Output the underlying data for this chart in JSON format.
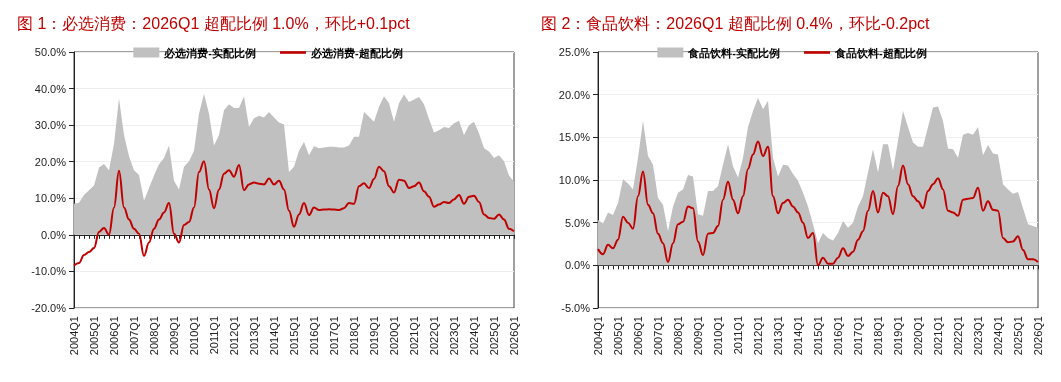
{
  "chart_data": [
    {
      "type": "line",
      "title": "图 1：必选消费：2026Q1 超配比例 1.0%，环比+0.1pct",
      "categories": [
        "2004Q1",
        null,
        null,
        null,
        "2005Q1",
        null,
        null,
        null,
        "2006Q1",
        null,
        null,
        null,
        "2007Q1",
        null,
        null,
        null,
        "2008Q1",
        null,
        null,
        null,
        "2009Q1",
        null,
        null,
        null,
        "2010Q1",
        null,
        null,
        null,
        "2011Q1",
        null,
        null,
        null,
        "2012Q1",
        null,
        null,
        null,
        "2013Q1",
        null,
        null,
        null,
        "2014Q1",
        null,
        null,
        null,
        "2015Q1",
        null,
        null,
        null,
        "2016Q1",
        null,
        null,
        null,
        "2017Q1",
        null,
        null,
        null,
        "2018Q1",
        null,
        null,
        null,
        "2019Q1",
        null,
        null,
        null,
        "2020Q1",
        null,
        null,
        null,
        "2021Q1",
        null,
        null,
        null,
        "2022Q1",
        null,
        null,
        null,
        "2023Q1",
        null,
        null,
        null,
        "2024Q1",
        null,
        null,
        null,
        "2025Q1",
        null,
        null,
        null,
        "2026Q1"
      ],
      "series": [
        {
          "name": "必选消费-实配比例",
          "type": "area",
          "color": "#c0c0c0",
          "values": [
            8.5,
            8.8,
            10.9,
            12.2,
            13.5,
            18.4,
            19.4,
            17.7,
            24.9,
            37.3,
            27.3,
            21.5,
            17.7,
            16.4,
            9.3,
            12.8,
            16.2,
            19.3,
            21,
            24.4,
            14.8,
            12.4,
            18.6,
            20.1,
            23,
            33.1,
            38.6,
            33.1,
            24.4,
            27.3,
            34.1,
            35.7,
            34.7,
            34.7,
            37.9,
            29.5,
            31.9,
            32.6,
            32.1,
            33.6,
            32.1,
            30.7,
            30.2,
            17.2,
            18.6,
            23,
            25.4,
            21.8,
            24.2,
            23.7,
            23.9,
            24.1,
            24.1,
            23.9,
            23.9,
            24.4,
            26.8,
            26.8,
            33.6,
            32.3,
            30.9,
            35,
            37.9,
            36,
            30.9,
            36,
            38.4,
            36.3,
            37,
            37.7,
            35.7,
            31.7,
            28,
            28.6,
            29.5,
            29.2,
            30.5,
            31.2,
            27.3,
            30,
            30.9,
            27.8,
            23.7,
            22.8,
            21,
            21.8,
            20.1,
            16.2,
            14.5
          ]
        },
        {
          "name": "必选消费-超配比例",
          "type": "line",
          "color": "#c00000",
          "values": [
            -8.4,
            -7.7,
            -5.5,
            -4.7,
            -3.6,
            0.8,
            1.9,
            0,
            7.5,
            17.5,
            7.5,
            4.2,
            1.7,
            0.3,
            -5.8,
            -2.1,
            1.7,
            4.2,
            6.1,
            8.7,
            0.3,
            -2.1,
            2.7,
            3.5,
            7.5,
            17.2,
            20.1,
            12.4,
            7.3,
            12.4,
            16.7,
            17.7,
            15.9,
            19.1,
            12.2,
            13.8,
            14.3,
            14,
            13.8,
            15.4,
            13.8,
            14.8,
            12.4,
            6.6,
            2.2,
            5.6,
            8.7,
            5.4,
            7.5,
            6.8,
            6.9,
            7,
            6.9,
            6.8,
            7.3,
            8.7,
            8.5,
            13.3,
            14.1,
            12.8,
            15.3,
            18.6,
            17.4,
            13.3,
            11.6,
            15.1,
            14.8,
            12.8,
            13.3,
            14.3,
            11.9,
            10.4,
            7.7,
            8.3,
            9,
            8.7,
            9.7,
            10.9,
            8.5,
            10.4,
            10.7,
            9,
            5.6,
            4.6,
            4.4,
            5.6,
            4.2,
            1.7,
            1.0
          ]
        }
      ],
      "ylim": [
        -20,
        50
      ],
      "yticks": [
        {
          "value": -20,
          "label": "-20.0%"
        },
        {
          "value": -10,
          "label": "-10.0%"
        },
        {
          "value": 0,
          "label": "0.0%"
        },
        {
          "value": 10,
          "label": "10.0%"
        },
        {
          "value": 20,
          "label": "20.0%"
        },
        {
          "value": 30,
          "label": "30.0%"
        },
        {
          "value": 40,
          "label": "40.0%"
        },
        {
          "value": 50,
          "label": "50.0%"
        }
      ],
      "grid": "y",
      "legend": "top",
      "marker": "none"
    },
    {
      "type": "line",
      "title": "图 2：食品饮料：2026Q1 超配比例 0.4%，环比-0.2pct",
      "categories": [
        "2004Q1",
        null,
        null,
        null,
        "2005Q1",
        null,
        null,
        null,
        "2006Q1",
        null,
        null,
        null,
        "2007Q1",
        null,
        null,
        null,
        "2008Q1",
        null,
        null,
        null,
        "2009Q1",
        null,
        null,
        null,
        "2010Q1",
        null,
        null,
        null,
        "2011Q1",
        null,
        null,
        null,
        "2012Q1",
        null,
        null,
        null,
        "2013Q1",
        null,
        null,
        null,
        "2014Q1",
        null,
        null,
        null,
        "2015Q1",
        null,
        null,
        null,
        "2016Q1",
        null,
        null,
        null,
        "2017Q1",
        null,
        null,
        null,
        "2018Q1",
        null,
        null,
        null,
        "2019Q1",
        null,
        null,
        null,
        "2020Q1",
        null,
        null,
        null,
        "2021Q1",
        null,
        null,
        null,
        "2022Q1",
        null,
        null,
        null,
        "2023Q1",
        null,
        null,
        null,
        "2024Q1",
        null,
        null,
        null,
        "2025Q1",
        null,
        null,
        null,
        "2026Q1"
      ],
      "series": [
        {
          "name": "食品饮料-实配比例",
          "type": "area",
          "color": "#c0c0c0",
          "values": [
            5.3,
            4.9,
            6.2,
            5.9,
            7.3,
            10.1,
            9.6,
            8.9,
            12.6,
            16.9,
            12.8,
            11.8,
            7.9,
            7.1,
            4,
            6.9,
            8.5,
            8.9,
            10.6,
            10.4,
            6,
            5.8,
            8.7,
            8.7,
            9.3,
            11.8,
            14.2,
            11.6,
            10.3,
            12.6,
            16.2,
            18.1,
            19.6,
            18.3,
            19.3,
            12.6,
            10.4,
            11.8,
            11.7,
            10.7,
            9.9,
            8.5,
            6.9,
            4.8,
            2.6,
            3.8,
            3.2,
            2.9,
            3.8,
            5.2,
            4.4,
            5,
            6.9,
            8.1,
            10.9,
            13.6,
            10.9,
            14.2,
            14.2,
            11.1,
            14.6,
            18.1,
            16.2,
            14.4,
            13.9,
            13.9,
            16.2,
            18.5,
            18.6,
            16.9,
            13.7,
            13.6,
            12.6,
            15.3,
            15.5,
            15.3,
            16.2,
            12.9,
            14.1,
            13.1,
            13,
            9.5,
            8.9,
            8.4,
            8.6,
            6.7,
            4.8,
            4.6,
            4.4
          ]
        },
        {
          "name": "食品饮料-超配比例",
          "type": "line",
          "color": "#c00000",
          "values": [
            1.9,
            1.3,
            2.4,
            2,
            3,
            5.7,
            5,
            4.3,
            8.1,
            11,
            7.1,
            6.1,
            3.7,
            2.6,
            0.4,
            2.6,
            4.8,
            5.1,
            6.9,
            6.7,
            2.8,
            1.2,
            3.7,
            3.8,
            4.6,
            7.7,
            9.8,
            7.7,
            6.1,
            8.1,
            11.3,
            13,
            14.5,
            12.8,
            13.9,
            8.1,
            6.1,
            7.3,
            7.7,
            6.9,
            6.2,
            5,
            3.2,
            3.8,
            0,
            0.9,
            0.2,
            0.2,
            0.9,
            2,
            1.1,
            1.6,
            3,
            4,
            6.4,
            8.7,
            6.2,
            8.5,
            8.1,
            6,
            9.3,
            11.7,
            9.5,
            8.1,
            7.5,
            6.7,
            8.7,
            9.5,
            10.2,
            8.9,
            6.4,
            6.2,
            5.8,
            7.7,
            7.8,
            7.9,
            9.1,
            6.4,
            7.5,
            6.5,
            6.4,
            3.2,
            2.7,
            2.8,
            3.4,
            1.8,
            0.7,
            0.7,
            0.4
          ]
        }
      ],
      "ylim": [
        -5,
        25
      ],
      "yticks": [
        {
          "value": -5,
          "label": "-5.0%"
        },
        {
          "value": 0,
          "label": "0.0%"
        },
        {
          "value": 5,
          "label": "5.0%"
        },
        {
          "value": 10,
          "label": "10.0%"
        },
        {
          "value": 15,
          "label": "15.0%"
        },
        {
          "value": 20,
          "label": "20.0%"
        },
        {
          "value": 25,
          "label": "25.0%"
        }
      ],
      "grid": "y",
      "legend": "top",
      "marker": "none"
    }
  ]
}
